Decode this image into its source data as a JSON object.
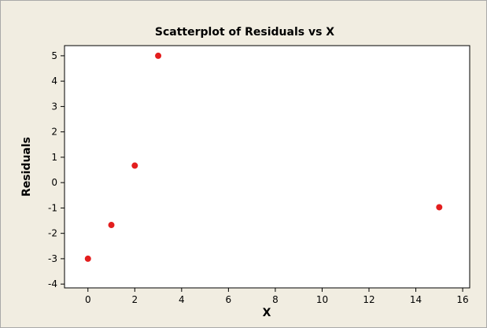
{
  "chart_data": {
    "type": "scatter",
    "title": "Scatterplot of Residuals vs X",
    "xlabel": "X",
    "ylabel": "Residuals",
    "xlim": [
      -1,
      16.3
    ],
    "ylim": [
      -4.15,
      5.4
    ],
    "xticks": [
      0,
      2,
      4,
      6,
      8,
      10,
      12,
      14,
      16
    ],
    "yticks": [
      -4,
      -3,
      -2,
      -1,
      0,
      1,
      2,
      3,
      4,
      5
    ],
    "grid": false,
    "legend": "none",
    "series": [
      {
        "points": [
          {
            "x": 0,
            "y": -3.0
          },
          {
            "x": 1,
            "y": -1.67
          },
          {
            "x": 2,
            "y": 0.67
          },
          {
            "x": 3,
            "y": 5.0
          },
          {
            "x": 15,
            "y": -0.97
          }
        ]
      }
    ],
    "colors": {
      "marker": "#e31e1e",
      "plot_background": "#ffffff",
      "figure_background": "#f1ede1",
      "axis": "#000000"
    }
  }
}
